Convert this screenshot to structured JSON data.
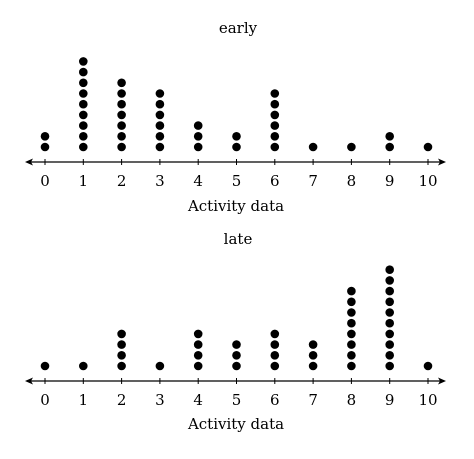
{
  "chart_data": [
    {
      "type": "dot",
      "title": "early",
      "xlabel": "Activity data",
      "ylabel": "",
      "x_ticks": [
        0,
        1,
        2,
        3,
        4,
        5,
        6,
        7,
        8,
        9,
        10
      ],
      "xlim": [
        0,
        10
      ],
      "grid": false,
      "counts": [
        {
          "x": 0,
          "count": 2
        },
        {
          "x": 1,
          "count": 9
        },
        {
          "x": 2,
          "count": 7
        },
        {
          "x": 3,
          "count": 6
        },
        {
          "x": 4,
          "count": 3
        },
        {
          "x": 5,
          "count": 2
        },
        {
          "x": 6,
          "count": 6
        },
        {
          "x": 7,
          "count": 1
        },
        {
          "x": 8,
          "count": 1
        },
        {
          "x": 9,
          "count": 2
        },
        {
          "x": 10,
          "count": 1
        }
      ]
    },
    {
      "type": "dot",
      "title": "late",
      "xlabel": "Activity data",
      "ylabel": "",
      "x_ticks": [
        0,
        1,
        2,
        3,
        4,
        5,
        6,
        7,
        8,
        9,
        10
      ],
      "xlim": [
        0,
        10
      ],
      "grid": false,
      "counts": [
        {
          "x": 0,
          "count": 1
        },
        {
          "x": 1,
          "count": 1
        },
        {
          "x": 2,
          "count": 4
        },
        {
          "x": 3,
          "count": 1
        },
        {
          "x": 4,
          "count": 4
        },
        {
          "x": 5,
          "count": 3
        },
        {
          "x": 6,
          "count": 4
        },
        {
          "x": 7,
          "count": 3
        },
        {
          "x": 8,
          "count": 8
        },
        {
          "x": 9,
          "count": 10
        },
        {
          "x": 10,
          "count": 1
        }
      ]
    }
  ]
}
